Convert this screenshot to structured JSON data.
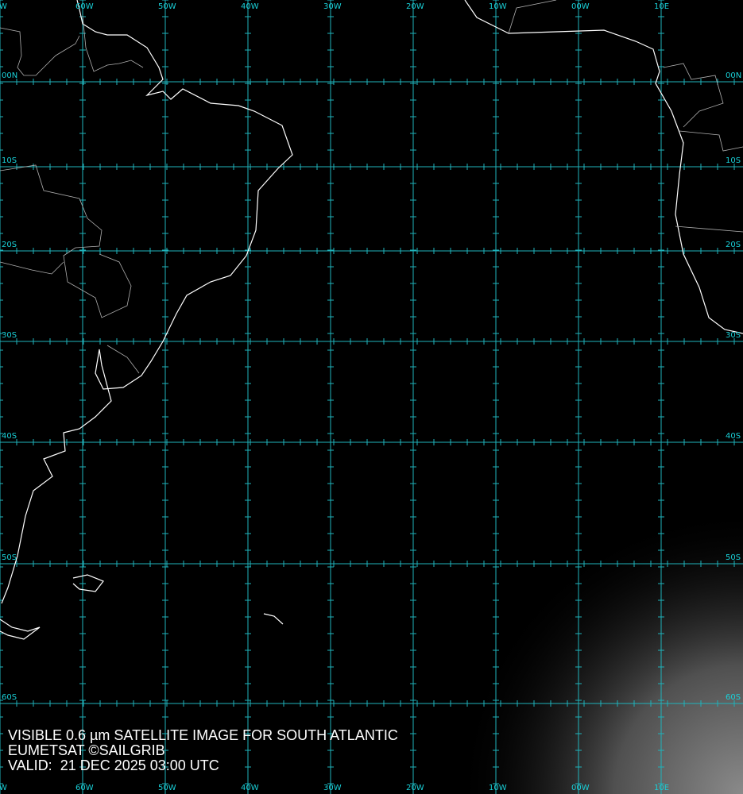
{
  "caption": {
    "line1": "VISIBLE 0.6 µm SATELLITE IMAGE FOR SOUTH ATLANTIC",
    "line2": "EUMETSAT ©SAILGRIB",
    "line3": "VALID:  21 DEC 2025 03:00 UTC"
  },
  "longitude_labels": [
    "W",
    "60W",
    "50W",
    "40W",
    "30W",
    "20W",
    "10W",
    "00W",
    "10E"
  ],
  "latitude_labels": [
    "00N",
    "10S",
    "20S",
    "30S",
    "40S",
    "50S",
    "60S"
  ],
  "colors": {
    "grid": "#1fb3bb",
    "labels": "#19d0d8",
    "coastline": "#ffffff",
    "borders": "#b0b0b0"
  }
}
